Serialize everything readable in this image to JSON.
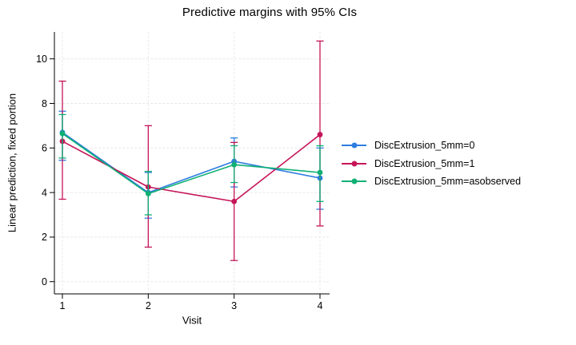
{
  "title": "Predictive margins with 95% CIs",
  "axis_color": "#000000",
  "gridline_color": "#e8e8e8",
  "chart_data": {
    "type": "line",
    "title": "Predictive margins with 95% CIs",
    "xlabel": "Visit",
    "ylabel": "Linear prediction, fixed portion",
    "x": [
      1,
      2,
      3,
      4
    ],
    "xtick_labels": [
      "1",
      "2",
      "3",
      "4"
    ],
    "yticks": [
      0,
      2,
      4,
      6,
      8,
      10
    ],
    "ylim": [
      0,
      11.2
    ],
    "grid": true,
    "error_bars": "95% CI",
    "legend_position": "right-outside",
    "series": [
      {
        "name": "DiscExtrusion_5mm=0",
        "color": "#2d7de1",
        "values": [
          6.7,
          4.0,
          5.4,
          4.65
        ],
        "ci_low": [
          5.45,
          2.85,
          4.25,
          3.25
        ],
        "ci_high": [
          7.65,
          4.9,
          6.45,
          6.0
        ]
      },
      {
        "name": "DiscExtrusion_5mm=1",
        "color": "#c51558",
        "values": [
          6.3,
          4.25,
          3.6,
          6.6
        ],
        "ci_low": [
          3.7,
          1.55,
          0.95,
          2.5
        ],
        "ci_high": [
          9.0,
          7.0,
          6.25,
          10.8
        ]
      },
      {
        "name": "DiscExtrusion_5mm=asobserved",
        "color": "#0fb074",
        "values": [
          6.65,
          3.95,
          5.25,
          4.9
        ],
        "ci_low": [
          5.55,
          3.0,
          4.45,
          3.6
        ],
        "ci_high": [
          7.5,
          4.95,
          6.1,
          6.1
        ]
      }
    ]
  }
}
